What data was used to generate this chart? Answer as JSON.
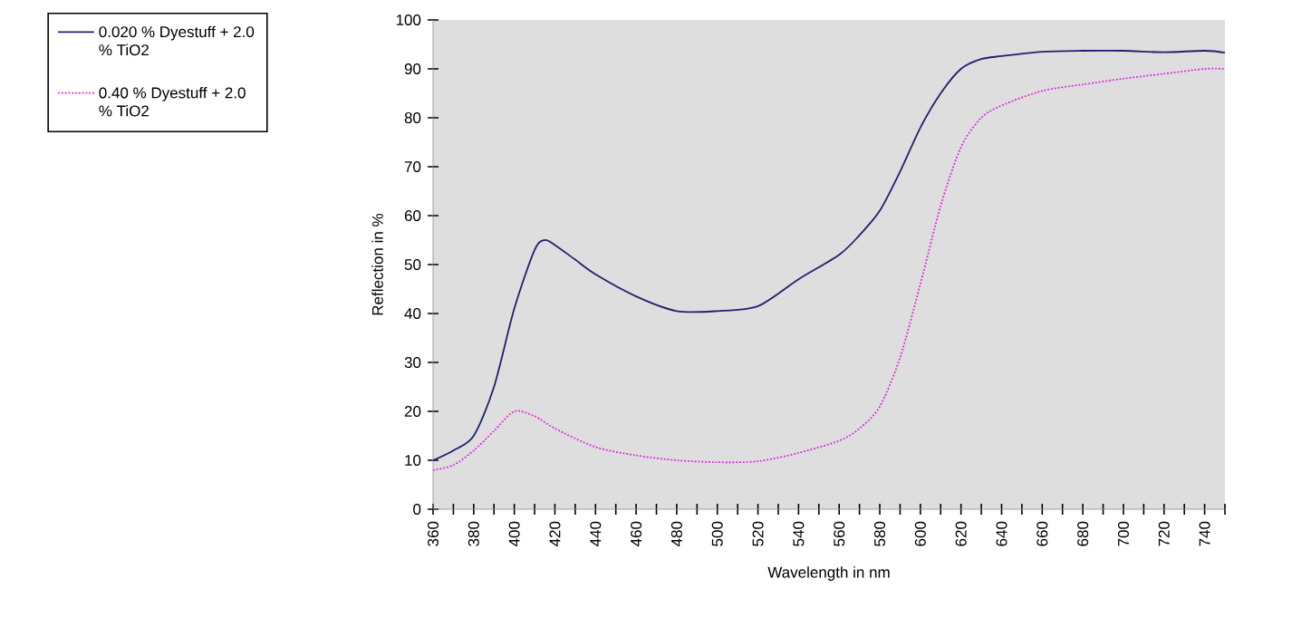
{
  "chart_data": {
    "type": "line",
    "xlabel": "Wavelength  in nm",
    "ylabel": "Reflection in %",
    "xlim": [
      360,
      750
    ],
    "ylim": [
      0,
      100
    ],
    "xticks": [
      360,
      {
        "value": 370,
        "label": null
      },
      380,
      {
        "value": 390,
        "label": null
      },
      400,
      {
        "value": 410,
        "label": null
      },
      420,
      {
        "value": 430,
        "label": null
      },
      440,
      {
        "value": 450,
        "label": null
      },
      460,
      {
        "value": 470,
        "label": null
      },
      480,
      {
        "value": 490,
        "label": null
      },
      500,
      {
        "value": 510,
        "label": null
      },
      520,
      {
        "value": 530,
        "label": null
      },
      540,
      {
        "value": 550,
        "label": null
      },
      560,
      {
        "value": 570,
        "label": null
      },
      580,
      {
        "value": 590,
        "label": null
      },
      600,
      {
        "value": 610,
        "label": null
      },
      620,
      {
        "value": 630,
        "label": null
      },
      640,
      {
        "value": 650,
        "label": null
      },
      660,
      {
        "value": 670,
        "label": null
      },
      680,
      {
        "value": 690,
        "label": null
      },
      700,
      {
        "value": 710,
        "label": null
      },
      720,
      {
        "value": 730,
        "label": null
      },
      740,
      {
        "value": 750,
        "label": null
      }
    ],
    "yticks": [
      0,
      10,
      20,
      30,
      40,
      50,
      60,
      70,
      80,
      90,
      100
    ],
    "grid": false,
    "legend": "top left",
    "series": [
      {
        "name": "0.020 % Dyestuff + 2.0 % TiO2",
        "color": "#202070",
        "line_style": "solid",
        "x": [
          360,
          370,
          380,
          390,
          400,
          410,
          415,
          420,
          430,
          440,
          460,
          480,
          500,
          520,
          540,
          560,
          570,
          580,
          590,
          600,
          610,
          620,
          630,
          640,
          660,
          680,
          700,
          720,
          740,
          750
        ],
        "values": [
          10,
          12,
          15,
          25,
          41,
          53,
          55,
          54,
          51,
          48,
          43.5,
          40.5,
          40.5,
          41.5,
          47,
          52,
          56,
          61,
          69,
          78,
          85,
          90,
          92,
          92.6,
          93.5,
          93.7,
          93.7,
          93.4,
          93.7,
          93.3
        ]
      },
      {
        "name": "0.40 % Dyestuff + 2.0 % TiO2",
        "color": "#dd22dd",
        "line_style": "dotted",
        "x": [
          360,
          370,
          380,
          390,
          400,
          410,
          420,
          440,
          460,
          480,
          500,
          520,
          540,
          560,
          570,
          580,
          590,
          600,
          610,
          620,
          630,
          640,
          660,
          680,
          700,
          720,
          740,
          750
        ],
        "values": [
          8,
          9,
          12,
          16,
          20,
          19,
          16.5,
          12.7,
          11,
          10,
          9.6,
          9.8,
          11.5,
          14,
          16.5,
          21,
          31,
          46,
          62,
          74,
          80,
          82.5,
          85.5,
          86.8,
          88,
          89,
          90,
          90
        ]
      }
    ]
  }
}
